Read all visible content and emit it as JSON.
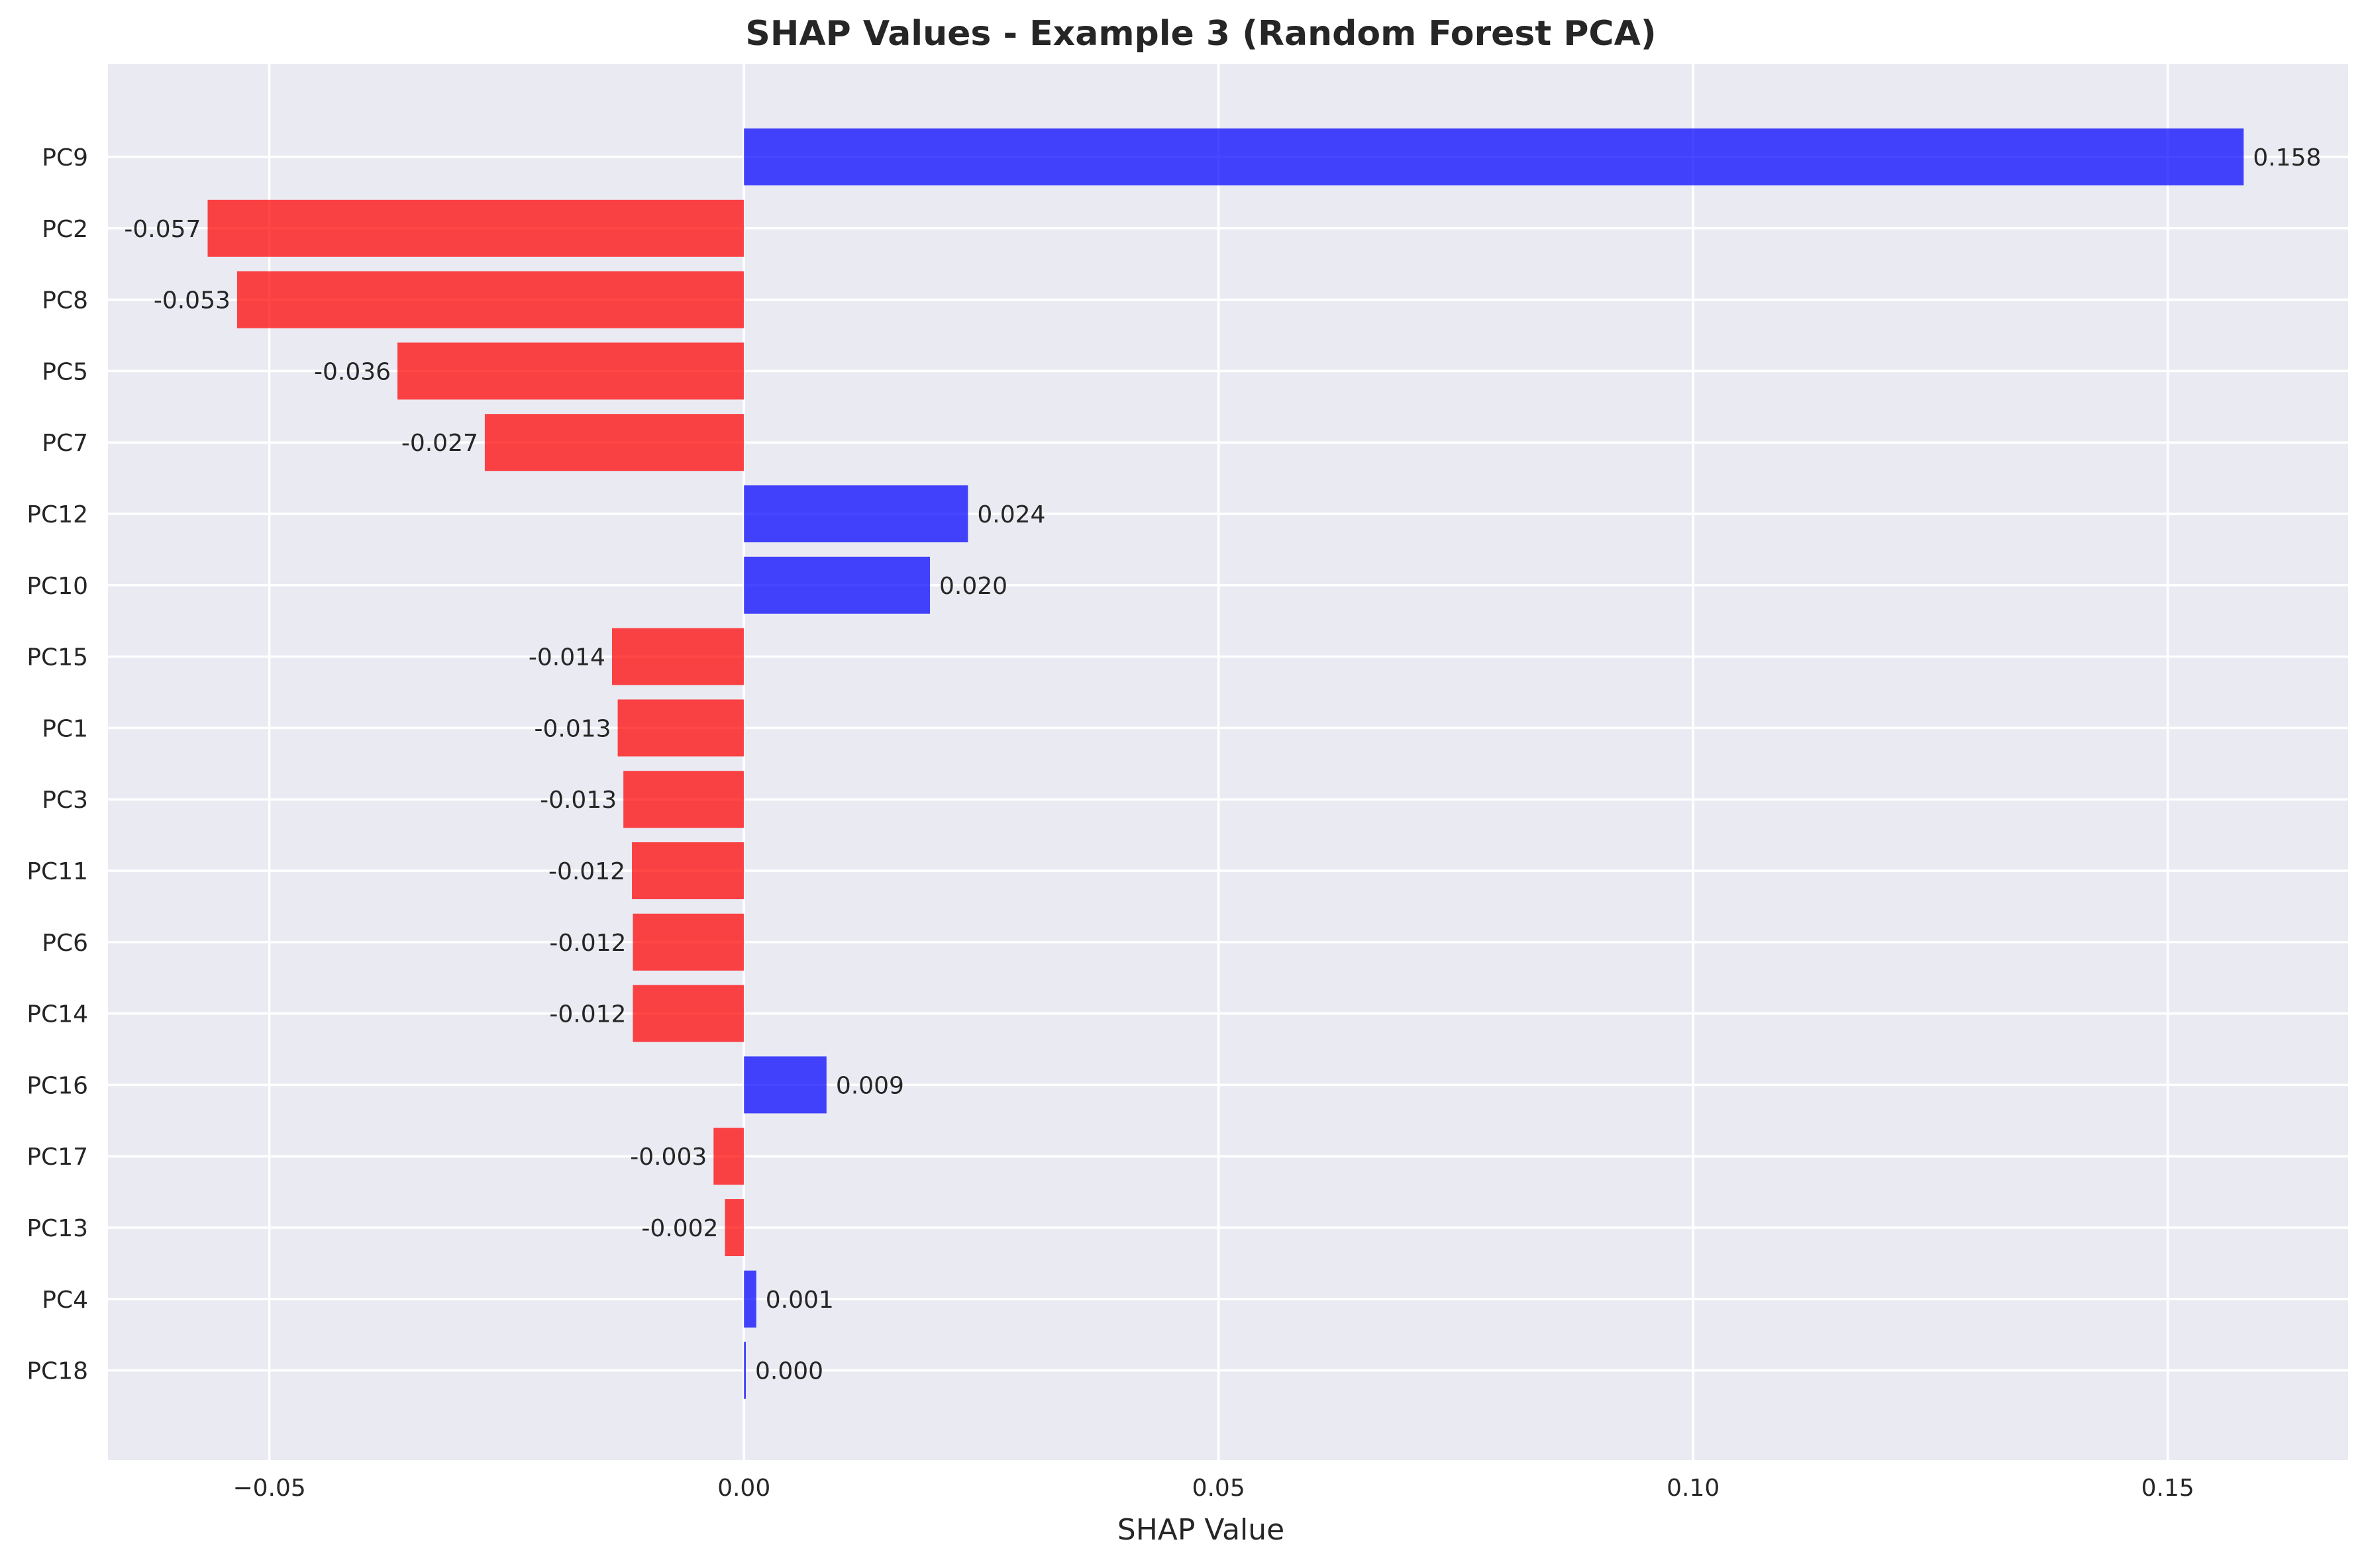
{
  "chart_data": {
    "type": "bar",
    "orientation": "horizontal",
    "title": "SHAP Values - Example 3 (Random Forest PCA)",
    "xlabel": "SHAP Value",
    "ylabel": "",
    "xlim": [
      -0.067,
      0.169
    ],
    "xticks": [
      -0.05,
      0.0,
      0.05,
      0.1,
      0.15
    ],
    "xtick_labels": [
      "−0.05",
      "0.00",
      "0.05",
      "0.10",
      "0.15"
    ],
    "grid": true,
    "legend": "none",
    "colors": {
      "positive": "#0000ff",
      "negative": "#ff0000",
      "background": "#eaeaf2",
      "grid": "#ffffff"
    },
    "bar_opacity": 0.72,
    "categories": [
      "PC9",
      "PC2",
      "PC8",
      "PC5",
      "PC7",
      "PC12",
      "PC10",
      "PC15",
      "PC1",
      "PC3",
      "PC11",
      "PC6",
      "PC14",
      "PC16",
      "PC17",
      "PC13",
      "PC4",
      "PC18"
    ],
    "values": [
      0.158,
      -0.0565,
      -0.0534,
      -0.0365,
      -0.0273,
      0.0236,
      0.0196,
      -0.0139,
      -0.0133,
      -0.0127,
      -0.0118,
      -0.0117,
      -0.0117,
      0.0087,
      -0.0032,
      -0.002,
      0.0013,
      0.0002
    ],
    "value_labels": [
      "0.158",
      "-0.057",
      "-0.053",
      "-0.036",
      "-0.027",
      "0.024",
      "0.020",
      "-0.014",
      "-0.013",
      "-0.013",
      "-0.012",
      "-0.012",
      "-0.012",
      "0.009",
      "-0.003",
      "-0.002",
      "0.001",
      "0.000"
    ]
  }
}
